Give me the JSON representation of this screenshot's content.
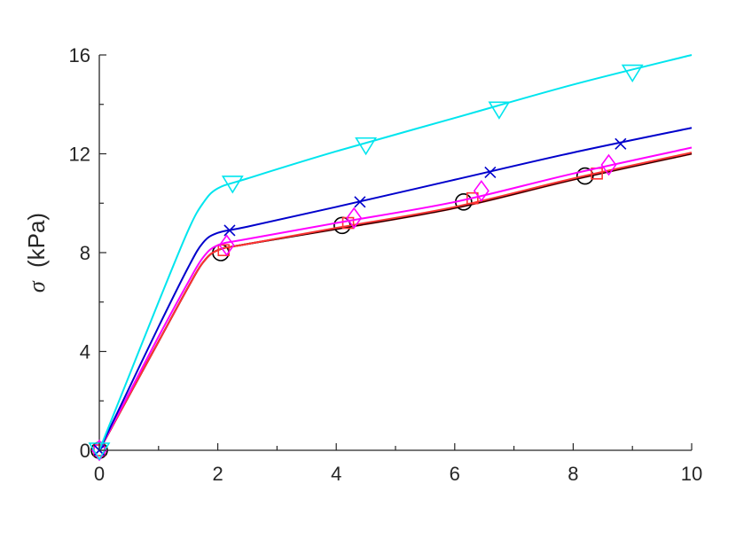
{
  "chart_data": {
    "type": "line",
    "title": "",
    "xlabel": "",
    "ylabel_symbol": "σ",
    "ylabel_unit": "(kPa)",
    "xlim": [
      0,
      10
    ],
    "ylim": [
      0,
      16
    ],
    "xticks": [
      0,
      2,
      4,
      6,
      8,
      10
    ],
    "yticks": [
      0,
      4,
      8,
      12,
      16
    ],
    "xtick_labels": [
      "0",
      "2",
      "4",
      "6",
      "8",
      "10"
    ],
    "ytick_labels": [
      "0",
      "4",
      "8",
      "12",
      "16"
    ],
    "grid": false,
    "legend": "none",
    "series": [
      {
        "color": "#8b0000",
        "marker": "none",
        "curve": [
          [
            0,
            0
          ],
          [
            0.5,
            2.2
          ],
          [
            1,
            4.4
          ],
          [
            1.5,
            6.6
          ],
          [
            1.75,
            7.6
          ],
          [
            2,
            8.1
          ],
          [
            2.5,
            8.35
          ],
          [
            4,
            8.95
          ],
          [
            6,
            9.8
          ],
          [
            8,
            10.95
          ],
          [
            10,
            12.0
          ]
        ],
        "markers": []
      },
      {
        "color": "#000000",
        "marker": "circle",
        "curve": [
          [
            0,
            0
          ],
          [
            0.5,
            2.2
          ],
          [
            1,
            4.4
          ],
          [
            1.5,
            6.6
          ],
          [
            1.75,
            7.6
          ],
          [
            2,
            8.1
          ],
          [
            2.5,
            8.35
          ],
          [
            4,
            8.97
          ],
          [
            6,
            9.82
          ],
          [
            8,
            10.97
          ],
          [
            10,
            12.02
          ]
        ],
        "markers": [
          [
            0,
            0
          ],
          [
            2.05,
            8.0
          ],
          [
            4.1,
            9.1
          ],
          [
            6.15,
            10.05
          ],
          [
            8.2,
            11.1
          ]
        ]
      },
      {
        "color": "#ff3333",
        "marker": "square",
        "curve": [
          [
            0,
            0
          ],
          [
            0.5,
            2.2
          ],
          [
            1,
            4.4
          ],
          [
            1.5,
            6.6
          ],
          [
            1.75,
            7.6
          ],
          [
            2,
            8.1
          ],
          [
            2.5,
            8.35
          ],
          [
            4,
            9.0
          ],
          [
            6,
            9.85
          ],
          [
            8,
            11.0
          ],
          [
            10,
            12.05
          ]
        ],
        "markers": [
          [
            0,
            0
          ],
          [
            2.1,
            8.1
          ],
          [
            4.2,
            9.2
          ],
          [
            6.3,
            10.2
          ],
          [
            8.4,
            11.2
          ]
        ]
      },
      {
        "color": "#ff00ff",
        "marker": "diamond",
        "curve": [
          [
            0,
            0
          ],
          [
            0.5,
            2.3
          ],
          [
            1,
            4.6
          ],
          [
            1.5,
            6.8
          ],
          [
            1.75,
            7.8
          ],
          [
            2,
            8.3
          ],
          [
            2.5,
            8.55
          ],
          [
            4,
            9.2
          ],
          [
            6,
            10.05
          ],
          [
            8,
            11.2
          ],
          [
            10,
            12.25
          ]
        ],
        "markers": [
          [
            0,
            0
          ],
          [
            2.15,
            8.3
          ],
          [
            4.3,
            9.4
          ],
          [
            6.45,
            10.5
          ],
          [
            8.6,
            11.55
          ]
        ]
      },
      {
        "color": "#0000cc",
        "marker": "x",
        "curve": [
          [
            0,
            0
          ],
          [
            0.5,
            2.5
          ],
          [
            1,
            5.0
          ],
          [
            1.5,
            7.4
          ],
          [
            1.75,
            8.4
          ],
          [
            2,
            8.8
          ],
          [
            2.5,
            9.05
          ],
          [
            4,
            9.85
          ],
          [
            6,
            10.95
          ],
          [
            8,
            12.05
          ],
          [
            10,
            13.05
          ]
        ],
        "markers": [
          [
            0,
            0
          ],
          [
            2.2,
            8.9
          ],
          [
            4.4,
            10.05
          ],
          [
            6.6,
            11.25
          ],
          [
            8.8,
            12.4
          ]
        ]
      },
      {
        "color": "#00e5ee",
        "marker": "triangle-down",
        "curve": [
          [
            0,
            0
          ],
          [
            0.5,
            3.0
          ],
          [
            1,
            6.0
          ],
          [
            1.5,
            8.9
          ],
          [
            1.75,
            10.0
          ],
          [
            2,
            10.6
          ],
          [
            2.5,
            11.0
          ],
          [
            4,
            12.1
          ],
          [
            6,
            13.45
          ],
          [
            8,
            14.8
          ],
          [
            10,
            16.0
          ]
        ],
        "markers": [
          [
            0,
            0
          ],
          [
            2.25,
            10.8
          ],
          [
            4.5,
            12.35
          ],
          [
            6.75,
            13.8
          ],
          [
            9.0,
            15.3
          ]
        ]
      }
    ]
  }
}
